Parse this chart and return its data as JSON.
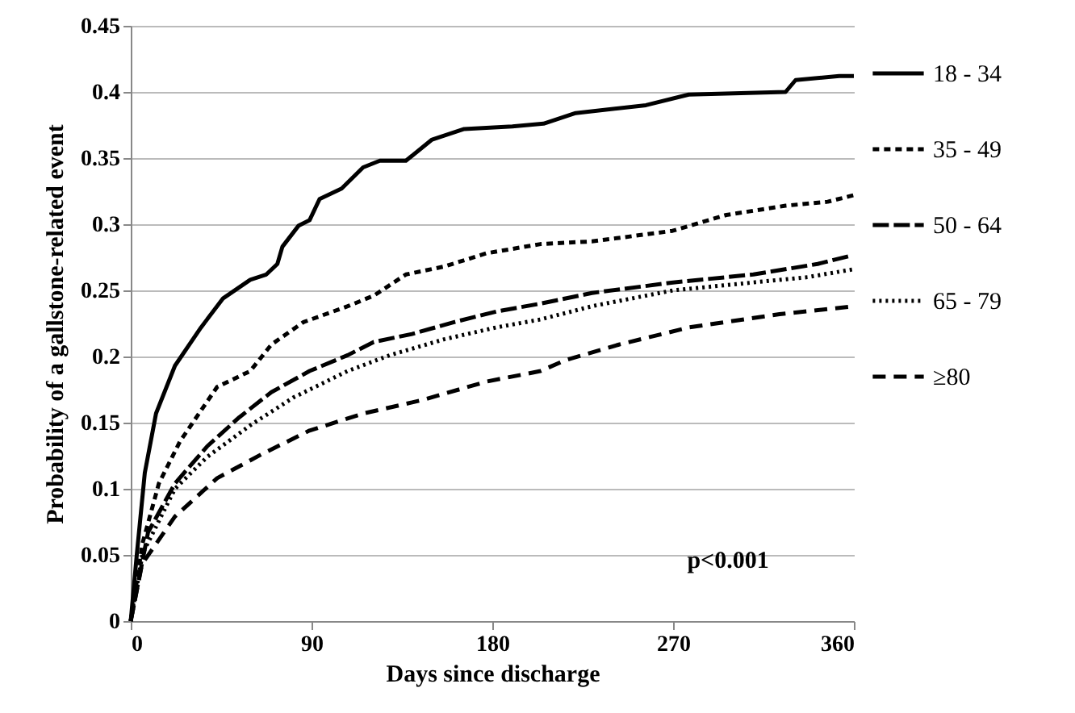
{
  "chart_data": {
    "type": "line",
    "xlabel": "Days since discharge",
    "ylabel": "Probability of a gallstone-related event",
    "xlim": [
      0,
      360
    ],
    "xticks": [
      0,
      90,
      180,
      270,
      360
    ],
    "ylim": [
      0,
      0.45
    ],
    "yticks": [
      0,
      0.05,
      0.1,
      0.15,
      0.2,
      0.25,
      0.3,
      0.35,
      0.4,
      0.45
    ],
    "grid": "y",
    "legend": "right",
    "annotations": [
      "p<0.001"
    ],
    "series": [
      {
        "name": "18 - 34",
        "color": "#000000",
        "line_style": "solid",
        "x": [
          0,
          3,
          7,
          12.6,
          22,
          35,
          46,
          59.5,
          67.5,
          73,
          75.5,
          83.6,
          89,
          94,
          105,
          115.7,
          124,
          137,
          150,
          166,
          190,
          205.5,
          221.5,
          256.5,
          277.8,
          326,
          331,
          352.7,
          360
        ],
        "values": [
          0,
          0.05,
          0.112,
          0.157,
          0.193,
          0.222,
          0.244,
          0.258,
          0.262,
          0.27,
          0.283,
          0.299,
          0.303,
          0.319,
          0.327,
          0.343,
          0.348,
          0.348,
          0.364,
          0.372,
          0.374,
          0.376,
          0.384,
          0.39,
          0.398,
          0.4,
          0.409,
          0.412,
          0.412
        ]
      },
      {
        "name": "35 - 49",
        "color": "#000000",
        "line_style": "dashed",
        "x": [
          0,
          5.9,
          14,
          24.6,
          43,
          59.5,
          70,
          86,
          108,
          121,
          137,
          156,
          177,
          204,
          229.6,
          269.7,
          296.5,
          326,
          347,
          360
        ],
        "values": [
          0,
          0.059,
          0.104,
          0.136,
          0.177,
          0.189,
          0.209,
          0.226,
          0.238,
          0.246,
          0.262,
          0.268,
          0.278,
          0.285,
          0.287,
          0.295,
          0.307,
          0.314,
          0.317,
          0.322
        ]
      },
      {
        "name": "50 - 64",
        "color": "#000000",
        "line_style": "dashed",
        "x": [
          0,
          8.6,
          22,
          38,
          54,
          70,
          89,
          108,
          121,
          140,
          161,
          182,
          204,
          229.6,
          270,
          310,
          342,
          358
        ],
        "values": [
          0,
          0.067,
          0.104,
          0.132,
          0.154,
          0.173,
          0.189,
          0.201,
          0.211,
          0.217,
          0.226,
          0.234,
          0.24,
          0.248,
          0.256,
          0.262,
          0.27,
          0.276
        ]
      },
      {
        "name": "65 - 79",
        "color": "#000000",
        "line_style": "dotted",
        "x": [
          0,
          5.9,
          22,
          38,
          59.5,
          81,
          108,
          129,
          156,
          182,
          204,
          229.6,
          270,
          310,
          337,
          360
        ],
        "values": [
          0,
          0.051,
          0.1,
          0.124,
          0.148,
          0.169,
          0.189,
          0.201,
          0.213,
          0.222,
          0.228,
          0.238,
          0.25,
          0.256,
          0.26,
          0.266
        ]
      },
      {
        "name": "≥80",
        "color": "#000000",
        "line_style": "dashed",
        "x": [
          0,
          5.6,
          22,
          43,
          65,
          89,
          116,
          145,
          177,
          204,
          216,
          243,
          278,
          323,
          360
        ],
        "values": [
          0,
          0.043,
          0.079,
          0.108,
          0.126,
          0.144,
          0.157,
          0.167,
          0.181,
          0.189,
          0.197,
          0.209,
          0.222,
          0.232,
          0.238
        ]
      }
    ]
  }
}
